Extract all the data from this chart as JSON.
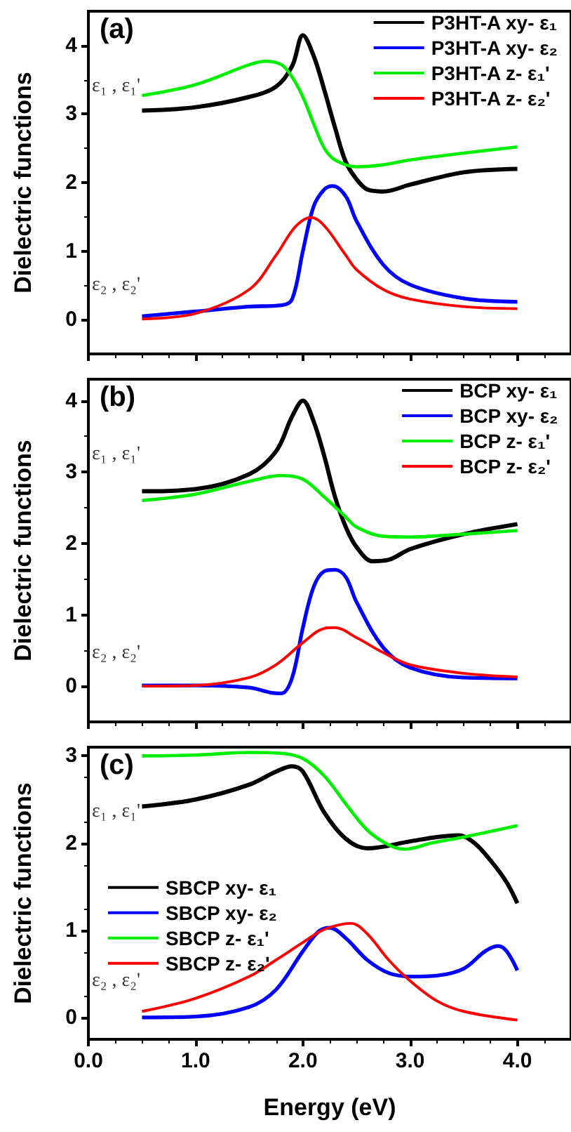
{
  "chart_data": [
    {
      "type": "line",
      "title": "(a)",
      "ylabel": "Dielectric functions",
      "xlim": [
        0,
        4.5
      ],
      "xticks": [
        0,
        1,
        2,
        3,
        4
      ],
      "ylim": [
        -0.5,
        4.5
      ],
      "yticks": [
        0,
        1,
        2,
        3,
        4
      ],
      "tick_labels": "y",
      "legend": "top right",
      "grid": false,
      "marker": "none",
      "line_style": "solid",
      "annotations": [
        "ε₁ , ε₁'",
        "ε₂ , ε₂'"
      ],
      "series": [
        {
          "name": "P3HT-A xy- ε₁",
          "color": "#000000",
          "x": [
            0.5,
            1.0,
            1.5,
            1.75,
            1.9,
            2.0,
            2.1,
            2.2,
            2.3,
            2.4,
            2.5,
            2.6,
            2.75,
            3.0,
            3.5,
            4.0
          ],
          "values": [
            3.05,
            3.1,
            3.25,
            3.4,
            3.7,
            4.15,
            3.85,
            3.35,
            2.8,
            2.3,
            2.05,
            1.9,
            1.87,
            1.97,
            2.15,
            2.2
          ]
        },
        {
          "name": "P3HT-A xy- ε₂",
          "color": "#0000ff",
          "x": [
            0.5,
            1.0,
            1.5,
            1.8,
            1.9,
            2.0,
            2.1,
            2.2,
            2.28,
            2.4,
            2.5,
            2.75,
            3.0,
            3.5,
            4.0
          ],
          "values": [
            0.05,
            0.12,
            0.19,
            0.21,
            0.3,
            1.0,
            1.65,
            1.9,
            1.95,
            1.8,
            1.44,
            0.8,
            0.51,
            0.31,
            0.26
          ]
        },
        {
          "name": "P3HT-A z- ε₁'",
          "color": "#00ee00",
          "x": [
            0.5,
            1.0,
            1.5,
            1.65,
            1.8,
            1.9,
            2.0,
            2.1,
            2.2,
            2.3,
            2.5,
            2.75,
            3.0,
            3.5,
            4.0
          ],
          "values": [
            3.27,
            3.43,
            3.72,
            3.77,
            3.72,
            3.54,
            3.25,
            2.86,
            2.5,
            2.33,
            2.23,
            2.26,
            2.33,
            2.43,
            2.52
          ]
        },
        {
          "name": "P3HT-A z- ε₂'",
          "color": "#ff0000",
          "x": [
            0.5,
            1.0,
            1.5,
            1.75,
            1.9,
            2.0,
            2.08,
            2.2,
            2.4,
            2.5,
            2.75,
            3.0,
            3.5,
            4.0
          ],
          "values": [
            0.01,
            0.09,
            0.44,
            0.94,
            1.3,
            1.45,
            1.49,
            1.37,
            0.94,
            0.73,
            0.44,
            0.3,
            0.19,
            0.16
          ]
        }
      ]
    },
    {
      "type": "line",
      "title": "(b)",
      "ylabel": "Dielectric functions",
      "xlim": [
        0,
        4.5
      ],
      "xticks": [
        0,
        1,
        2,
        3,
        4
      ],
      "ylim": [
        -0.5,
        4.3
      ],
      "yticks": [
        0,
        1,
        2,
        3,
        4
      ],
      "tick_labels": "y",
      "legend": "top right",
      "grid": false,
      "marker": "none",
      "line_style": "solid",
      "annotations": [
        "ε₁ , ε₁'",
        "ε₂ , ε₂'"
      ],
      "series": [
        {
          "name": "BCP xy- ε₁",
          "color": "#000000",
          "x": [
            0.5,
            1.0,
            1.5,
            1.75,
            1.9,
            2.0,
            2.1,
            2.2,
            2.3,
            2.4,
            2.5,
            2.65,
            2.8,
            3.0,
            3.5,
            4.0
          ],
          "values": [
            2.73,
            2.76,
            2.97,
            3.29,
            3.78,
            4.0,
            3.71,
            3.22,
            2.65,
            2.23,
            1.95,
            1.75,
            1.77,
            1.92,
            2.13,
            2.27
          ]
        },
        {
          "name": "BCP xy- ε₂",
          "color": "#0000ff",
          "x": [
            0.5,
            1.0,
            1.5,
            1.7,
            1.8,
            1.9,
            2.0,
            2.1,
            2.2,
            2.3,
            2.4,
            2.5,
            2.75,
            3.0,
            3.5,
            4.0
          ],
          "values": [
            0.01,
            0.01,
            -0.02,
            -0.09,
            -0.1,
            0.12,
            0.82,
            1.39,
            1.61,
            1.63,
            1.53,
            1.18,
            0.54,
            0.26,
            0.12,
            0.11
          ]
        },
        {
          "name": "BCP z- ε₁'",
          "color": "#00ee00",
          "x": [
            0.5,
            1.0,
            1.5,
            1.8,
            2.0,
            2.2,
            2.4,
            2.5,
            2.75,
            3.0,
            3.5,
            4.0
          ],
          "values": [
            2.6,
            2.69,
            2.87,
            2.95,
            2.9,
            2.65,
            2.37,
            2.23,
            2.1,
            2.09,
            2.13,
            2.18
          ]
        },
        {
          "name": "BCP z- ε₂'",
          "color": "#ff0000",
          "x": [
            0.5,
            1.0,
            1.5,
            1.75,
            2.0,
            2.2,
            2.3,
            2.5,
            2.75,
            3.0,
            3.5,
            4.0
          ],
          "values": [
            0,
            0.01,
            0.12,
            0.3,
            0.61,
            0.81,
            0.82,
            0.68,
            0.47,
            0.3,
            0.18,
            0.13
          ]
        }
      ]
    },
    {
      "type": "line",
      "title": "(c)",
      "xlabel": "Energy (eV)",
      "ylabel": "Dielectric functions",
      "xlim": [
        0,
        4.5
      ],
      "xticks": [
        {
          "value": 0,
          "label": "0.0"
        },
        {
          "value": 1,
          "label": "1.0"
        },
        {
          "value": 2,
          "label": "2.0"
        },
        {
          "value": 3,
          "label": "3.0"
        },
        {
          "value": 4,
          "label": "4.0"
        }
      ],
      "ylim": [
        -0.25,
        3.1
      ],
      "yticks": [
        0,
        1,
        2,
        3
      ],
      "legend": "left",
      "grid": false,
      "marker": "none",
      "line_style": "solid",
      "annotations": [
        "ε₁ , ε₁'",
        "ε₂ , ε₂'"
      ],
      "series": [
        {
          "name": "SBCP xy- ε₁",
          "color": "#000000",
          "x": [
            0.5,
            1.0,
            1.5,
            1.75,
            1.9,
            2.0,
            2.2,
            2.4,
            2.6,
            3.0,
            3.25,
            3.45,
            3.6,
            3.75,
            3.9,
            4.0
          ],
          "values": [
            2.42,
            2.5,
            2.67,
            2.82,
            2.88,
            2.82,
            2.35,
            2.05,
            1.94,
            2.02,
            2.07,
            2.09,
            2.0,
            1.8,
            1.55,
            1.31
          ]
        },
        {
          "name": "SBCP xy- ε₂",
          "color": "#0000ff",
          "x": [
            0.5,
            1.0,
            1.5,
            1.75,
            2.0,
            2.15,
            2.25,
            2.4,
            2.6,
            2.8,
            3.0,
            3.25,
            3.5,
            3.7,
            3.82,
            3.9,
            4.0
          ],
          "values": [
            0,
            0.01,
            0.12,
            0.32,
            0.76,
            0.99,
            1.03,
            0.91,
            0.66,
            0.51,
            0.47,
            0.48,
            0.56,
            0.76,
            0.82,
            0.76,
            0.54
          ]
        },
        {
          "name": "SBCP z- ε₁'",
          "color": "#00ee00",
          "x": [
            0.5,
            1.0,
            1.5,
            1.8,
            2.0,
            2.2,
            2.4,
            2.6,
            2.8,
            2.95,
            3.2,
            3.5,
            4.0
          ],
          "values": [
            3.0,
            3.01,
            3.04,
            3.03,
            2.97,
            2.77,
            2.45,
            2.15,
            1.98,
            1.93,
            2.0,
            2.07,
            2.2
          ]
        },
        {
          "name": "SBCP z- ε₂'",
          "color": "#ff0000",
          "x": [
            0.5,
            1.0,
            1.5,
            1.75,
            2.0,
            2.2,
            2.45,
            2.6,
            2.8,
            3.0,
            3.25,
            3.5,
            4.0
          ],
          "values": [
            0.07,
            0.22,
            0.47,
            0.66,
            0.86,
            1.01,
            1.08,
            0.96,
            0.66,
            0.42,
            0.19,
            0.07,
            -0.03
          ]
        }
      ]
    }
  ]
}
